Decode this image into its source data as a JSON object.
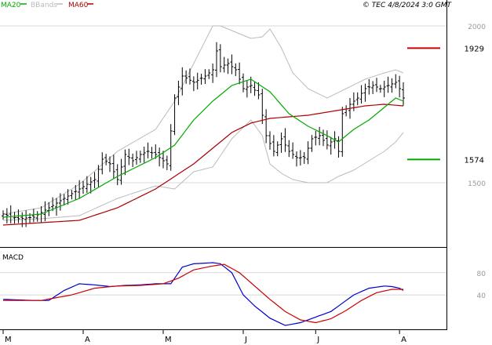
{
  "header": {
    "legend": [
      {
        "label": "MA20",
        "color": "#00aa00"
      },
      {
        "label": "BBands",
        "color": "#bbbbbb"
      },
      {
        "label": "MA60",
        "color": "#aa0000"
      }
    ],
    "copyright": "© TEC 4/8/2024 3:0 GMT"
  },
  "chart_data": [
    {
      "type": "line",
      "panel": "price",
      "title": "",
      "ylim": [
        1295,
        2045
      ],
      "y_ticks": [
        {
          "value": 2000,
          "label": "2000"
        },
        {
          "value": 1500,
          "label": "1500"
        }
      ],
      "markers": [
        {
          "value": 1929,
          "label": "1929",
          "color": "#cc0000"
        },
        {
          "value": 1574,
          "label": "1574",
          "color": "#00aa00"
        }
      ],
      "x_ticks": [
        {
          "index": 0,
          "label": "M"
        },
        {
          "index": 21,
          "label": "A"
        },
        {
          "index": 42,
          "label": "M"
        },
        {
          "index": 63,
          "label": "J"
        },
        {
          "index": 82,
          "label": "J"
        },
        {
          "index": 104,
          "label": "A"
        }
      ],
      "n_bars": 106,
      "anchors": {
        "close": [
          [
            0,
            1400
          ],
          [
            4,
            1385
          ],
          [
            8,
            1390
          ],
          [
            12,
            1420
          ],
          [
            16,
            1450
          ],
          [
            20,
            1480
          ],
          [
            24,
            1510
          ],
          [
            26,
            1575
          ],
          [
            28,
            1560
          ],
          [
            30,
            1510
          ],
          [
            32,
            1590
          ],
          [
            34,
            1570
          ],
          [
            36,
            1590
          ],
          [
            38,
            1600
          ],
          [
            40,
            1590
          ],
          [
            43,
            1560
          ],
          [
            45,
            1770
          ],
          [
            47,
            1840
          ],
          [
            50,
            1820
          ],
          [
            53,
            1840
          ],
          [
            55,
            1860
          ],
          [
            56,
            1920
          ],
          [
            57,
            1870
          ],
          [
            59,
            1880
          ],
          [
            61,
            1860
          ],
          [
            63,
            1800
          ],
          [
            65,
            1810
          ],
          [
            67,
            1780
          ],
          [
            69,
            1650
          ],
          [
            71,
            1600
          ],
          [
            73,
            1640
          ],
          [
            75,
            1600
          ],
          [
            77,
            1580
          ],
          [
            79,
            1580
          ],
          [
            81,
            1640
          ],
          [
            83,
            1650
          ],
          [
            85,
            1620
          ],
          [
            87,
            1640
          ],
          [
            88,
            1600
          ],
          [
            89,
            1720
          ],
          [
            91,
            1750
          ],
          [
            93,
            1770
          ],
          [
            95,
            1800
          ],
          [
            97,
            1810
          ],
          [
            99,
            1800
          ],
          [
            101,
            1810
          ],
          [
            103,
            1820
          ],
          [
            104,
            1800
          ],
          [
            105,
            1770
          ]
        ],
        "ma20": [
          [
            0,
            1390
          ],
          [
            10,
            1400
          ],
          [
            20,
            1450
          ],
          [
            30,
            1520
          ],
          [
            40,
            1580
          ],
          [
            45,
            1620
          ],
          [
            50,
            1700
          ],
          [
            55,
            1760
          ],
          [
            60,
            1810
          ],
          [
            65,
            1830
          ],
          [
            70,
            1790
          ],
          [
            75,
            1720
          ],
          [
            80,
            1680
          ],
          [
            85,
            1650
          ],
          [
            88,
            1630
          ],
          [
            92,
            1670
          ],
          [
            96,
            1700
          ],
          [
            100,
            1740
          ],
          [
            103,
            1770
          ],
          [
            105,
            1760
          ]
        ],
        "ma60": [
          [
            0,
            1365
          ],
          [
            20,
            1380
          ],
          [
            30,
            1420
          ],
          [
            40,
            1480
          ],
          [
            50,
            1560
          ],
          [
            55,
            1610
          ],
          [
            60,
            1660
          ],
          [
            65,
            1690
          ],
          [
            70,
            1705
          ],
          [
            75,
            1710
          ],
          [
            80,
            1715
          ],
          [
            85,
            1725
          ],
          [
            90,
            1735
          ],
          [
            95,
            1745
          ],
          [
            100,
            1750
          ],
          [
            105,
            1745
          ]
        ],
        "bb_upper": [
          [
            0,
            1400
          ],
          [
            10,
            1420
          ],
          [
            20,
            1495
          ],
          [
            30,
            1600
          ],
          [
            40,
            1670
          ],
          [
            45,
            1760
          ],
          [
            50,
            1880
          ],
          [
            55,
            2000
          ],
          [
            57,
            2000
          ],
          [
            60,
            1985
          ],
          [
            65,
            1960
          ],
          [
            68,
            1965
          ],
          [
            70,
            1990
          ],
          [
            73,
            1930
          ],
          [
            76,
            1850
          ],
          [
            80,
            1800
          ],
          [
            85,
            1770
          ],
          [
            90,
            1800
          ],
          [
            95,
            1830
          ],
          [
            100,
            1850
          ],
          [
            103,
            1860
          ],
          [
            105,
            1850
          ]
        ],
        "bb_lower": [
          [
            0,
            1380
          ],
          [
            10,
            1385
          ],
          [
            20,
            1395
          ],
          [
            30,
            1450
          ],
          [
            40,
            1490
          ],
          [
            45,
            1480
          ],
          [
            50,
            1535
          ],
          [
            55,
            1550
          ],
          [
            60,
            1640
          ],
          [
            65,
            1700
          ],
          [
            68,
            1650
          ],
          [
            70,
            1560
          ],
          [
            73,
            1530
          ],
          [
            76,
            1510
          ],
          [
            80,
            1500
          ],
          [
            85,
            1500
          ],
          [
            88,
            1520
          ],
          [
            92,
            1540
          ],
          [
            96,
            1570
          ],
          [
            100,
            1600
          ],
          [
            103,
            1630
          ],
          [
            105,
            1660
          ]
        ]
      }
    },
    {
      "type": "line",
      "panel": "indicator",
      "title": "MACD",
      "ylim": [
        -22,
        122
      ],
      "y_ticks": [
        {
          "value": 80,
          "label": "80"
        },
        {
          "value": 40,
          "label": "40"
        }
      ],
      "series": [
        {
          "name": "MACD",
          "color": "#0000cc",
          "anchors": [
            [
              0,
              32
            ],
            [
              8,
              30
            ],
            [
              12,
              30
            ],
            [
              16,
              48
            ],
            [
              20,
              60
            ],
            [
              24,
              58
            ],
            [
              28,
              55
            ],
            [
              32,
              57
            ],
            [
              36,
              58
            ],
            [
              40,
              60
            ],
            [
              44,
              60
            ],
            [
              47,
              90
            ],
            [
              50,
              96
            ],
            [
              55,
              98
            ],
            [
              57,
              96
            ],
            [
              60,
              80
            ],
            [
              63,
              40
            ],
            [
              66,
              20
            ],
            [
              70,
              -2
            ],
            [
              74,
              -15
            ],
            [
              78,
              -10
            ],
            [
              82,
              0
            ],
            [
              86,
              10
            ],
            [
              88,
              20
            ],
            [
              92,
              40
            ],
            [
              96,
              52
            ],
            [
              100,
              56
            ],
            [
              102,
              55
            ],
            [
              104,
              52
            ],
            [
              105,
              48
            ]
          ]
        },
        {
          "name": "Signal",
          "color": "#cc0000",
          "anchors": [
            [
              0,
              30
            ],
            [
              10,
              30
            ],
            [
              18,
              40
            ],
            [
              24,
              52
            ],
            [
              30,
              56
            ],
            [
              36,
              57
            ],
            [
              42,
              60
            ],
            [
              46,
              70
            ],
            [
              50,
              85
            ],
            [
              55,
              92
            ],
            [
              58,
              95
            ],
            [
              62,
              80
            ],
            [
              66,
              56
            ],
            [
              70,
              32
            ],
            [
              74,
              10
            ],
            [
              78,
              -5
            ],
            [
              82,
              -10
            ],
            [
              86,
              -3
            ],
            [
              90,
              12
            ],
            [
              94,
              30
            ],
            [
              98,
              44
            ],
            [
              102,
              50
            ],
            [
              105,
              50
            ]
          ]
        }
      ]
    }
  ]
}
